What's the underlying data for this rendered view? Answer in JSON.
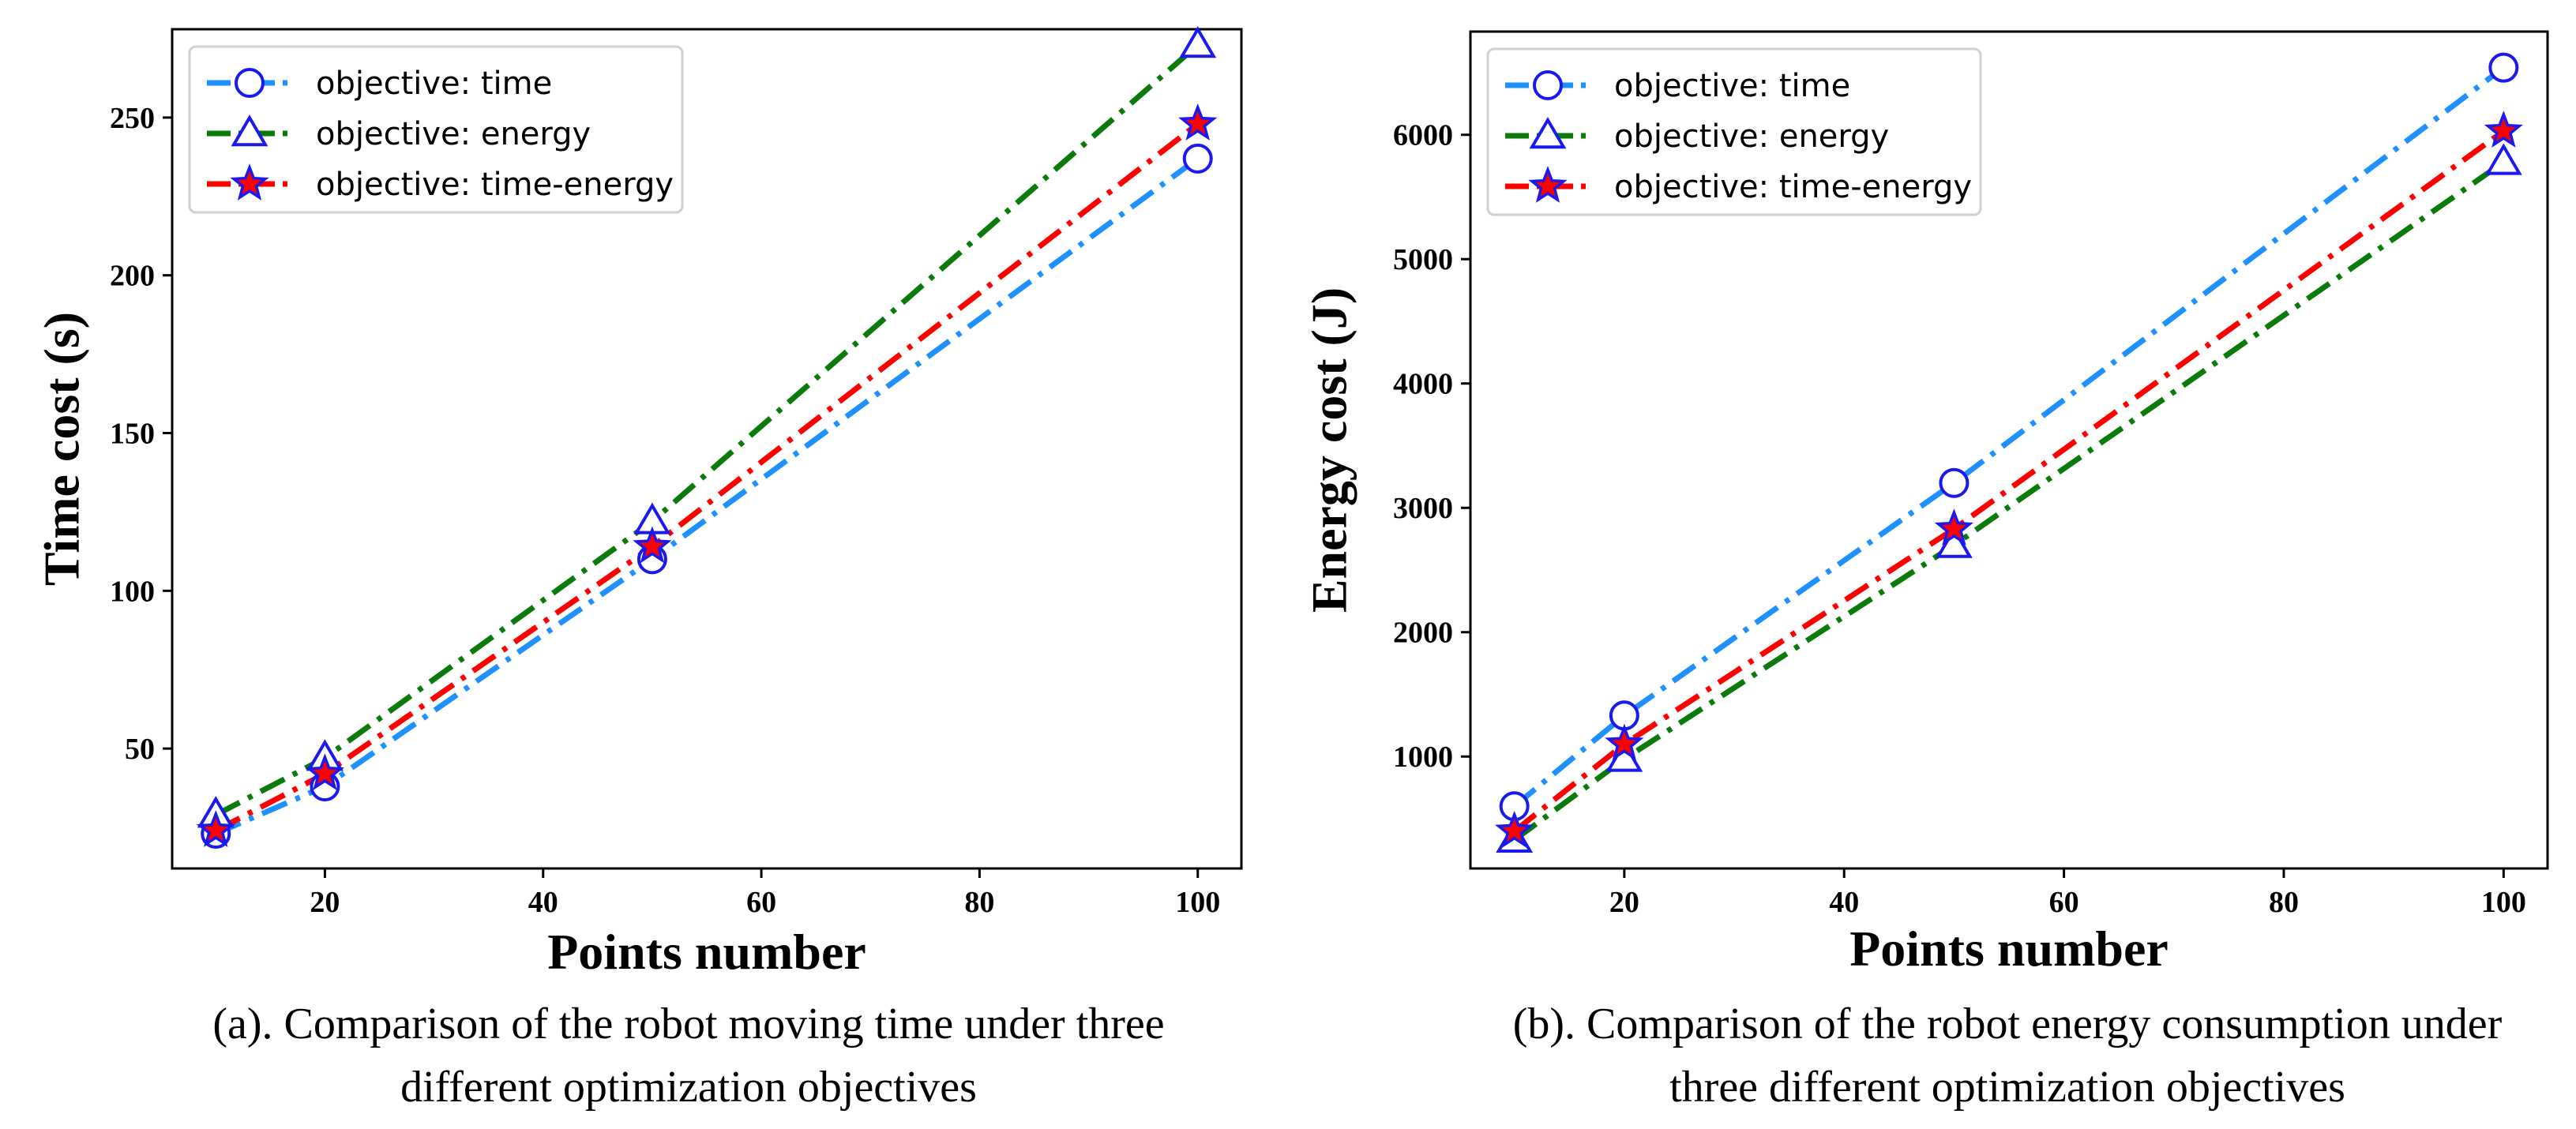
{
  "chart_data": [
    {
      "type": "line",
      "x": [
        10,
        20,
        50,
        100
      ],
      "xlabel": "Points number",
      "ylabel": "Time cost (s)",
      "xlim": [
        6,
        104
      ],
      "ylim": [
        12,
        278
      ],
      "xticks": [
        20,
        40,
        60,
        80,
        100
      ],
      "yticks": [
        50,
        100,
        150,
        200,
        250
      ],
      "grid": false,
      "legend_position": "top-left",
      "series": [
        {
          "name": "objective: time",
          "values": [
            23,
            38,
            110,
            237
          ],
          "color": "#1e90ff",
          "marker": "circle"
        },
        {
          "name": "objective: energy",
          "values": [
            29,
            47,
            122,
            273
          ],
          "color": "#0a7a0a",
          "marker": "triangle"
        },
        {
          "name": "objective: time-energy",
          "values": [
            24,
            42,
            114,
            248
          ],
          "color": "#ff0000",
          "marker": "star"
        }
      ],
      "caption": [
        "(a). Comparison of the robot moving time under three",
        "different optimization objectives"
      ]
    },
    {
      "type": "line",
      "x": [
        10,
        20,
        50,
        100
      ],
      "xlabel": "Points number",
      "ylabel": "Energy cost (J)",
      "xlim": [
        6,
        104
      ],
      "ylim": [
        100,
        6830
      ],
      "xticks": [
        20,
        40,
        60,
        80,
        100
      ],
      "yticks": [
        1000,
        2000,
        3000,
        4000,
        5000,
        6000
      ],
      "grid": false,
      "legend_position": "top-left",
      "series": [
        {
          "name": "objective: time",
          "values": [
            600,
            1330,
            3200,
            6540
          ],
          "color": "#1e90ff",
          "marker": "circle"
        },
        {
          "name": "objective: energy",
          "values": [
            330,
            980,
            2700,
            5780
          ],
          "color": "#0a7a0a",
          "marker": "triangle"
        },
        {
          "name": "objective: time-energy",
          "values": [
            400,
            1100,
            2830,
            6030
          ],
          "color": "#ff0000",
          "marker": "star"
        }
      ],
      "caption": [
        "(b). Comparison of the robot energy consumption under",
        "three different optimization objectives"
      ]
    }
  ]
}
